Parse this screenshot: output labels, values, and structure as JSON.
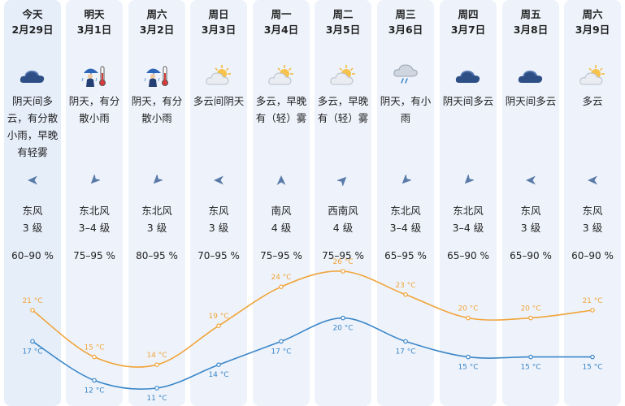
{
  "colors": {
    "high_line": "#f0a43a",
    "low_line": "#3a86c8",
    "column_bg": "#eef3fb"
  },
  "days": [
    {
      "day": "今天",
      "date": "2月29日",
      "icon": "cloud-icon",
      "condition": "阴天间多云，有分散小雨，早晚有轻雾",
      "wind_icon": "wind-arrow-left-icon",
      "wind_dir": "东风",
      "wind_level": "3 级",
      "humidity": "60–90 %",
      "high": "21 °C",
      "low": "17 °C"
    },
    {
      "day": "明天",
      "date": "3月1日",
      "icon": "rain-person-icon",
      "condition": "阴天，有分散小雨",
      "wind_icon": "wind-arrow-downleft-icon",
      "wind_dir": "东北风",
      "wind_level": "3–4 级",
      "humidity": "75–95 %",
      "high": "15 °C",
      "low": "12 °C"
    },
    {
      "day": "周六",
      "date": "3月2日",
      "icon": "rain-person-icon",
      "condition": "阴天，有分散小雨",
      "wind_icon": "wind-arrow-downleft-icon",
      "wind_dir": "东北风",
      "wind_level": "3 级",
      "humidity": "80–95 %",
      "high": "14 °C",
      "low": "11 °C"
    },
    {
      "day": "周日",
      "date": "3月3日",
      "icon": "partly-cloudy-icon",
      "condition": "多云间阴天",
      "wind_icon": "wind-arrow-left-icon",
      "wind_dir": "东风",
      "wind_level": "3 级",
      "humidity": "70–95 %",
      "high": "19 °C",
      "low": "14 °C"
    },
    {
      "day": "周一",
      "date": "3月4日",
      "icon": "partly-cloudy-icon",
      "condition": "多云，早晚有（轻）雾",
      "wind_icon": "wind-arrow-up-icon",
      "wind_dir": "南风",
      "wind_level": "4 级",
      "humidity": "75–95 %",
      "high": "24 °C",
      "low": "17 °C"
    },
    {
      "day": "周二",
      "date": "3月5日",
      "icon": "partly-cloudy-icon",
      "condition": "多云，早晚有（轻）雾",
      "wind_icon": "wind-arrow-upright-icon",
      "wind_dir": "西南风",
      "wind_level": "4 级",
      "humidity": "75–95 %",
      "high": "26 °C",
      "low": "20 °C"
    },
    {
      "day": "周三",
      "date": "3月6日",
      "icon": "light-rain-icon",
      "condition": "阴天，有小雨",
      "wind_icon": "wind-arrow-downleft-icon",
      "wind_dir": "东北风",
      "wind_level": "3–4 级",
      "humidity": "65–95 %",
      "high": "23 °C",
      "low": "17 °C"
    },
    {
      "day": "周四",
      "date": "3月7日",
      "icon": "cloud-icon",
      "condition": "阴天间多云",
      "wind_icon": "wind-arrow-downleft-icon",
      "wind_dir": "东北风",
      "wind_level": "3–4 级",
      "humidity": "65–90 %",
      "high": "20 °C",
      "low": "15 °C"
    },
    {
      "day": "周五",
      "date": "3月8日",
      "icon": "cloud-icon",
      "condition": "阴天间多云",
      "wind_icon": "wind-arrow-left-icon",
      "wind_dir": "东风",
      "wind_level": "3 级",
      "humidity": "65–90 %",
      "high": "20 °C",
      "low": "15 °C"
    },
    {
      "day": "周六",
      "date": "3月9日",
      "icon": "partly-cloudy-icon",
      "condition": "多云",
      "wind_icon": "wind-arrow-left-icon",
      "wind_dir": "东风",
      "wind_level": "3 级",
      "humidity": "60–90 %",
      "high": "21 °C",
      "low": "15 °C"
    }
  ],
  "chart_data": {
    "type": "line",
    "categories": [
      "2月29日",
      "3月1日",
      "3月2日",
      "3月3日",
      "3月4日",
      "3月5日",
      "3月6日",
      "3月7日",
      "3月8日",
      "3月9日"
    ],
    "series": [
      {
        "values": [
          21,
          15,
          14,
          19,
          24,
          26,
          23,
          20,
          20,
          21
        ]
      },
      {
        "values": [
          17,
          12,
          11,
          14,
          17,
          20,
          17,
          15,
          15,
          15
        ]
      }
    ]
  }
}
